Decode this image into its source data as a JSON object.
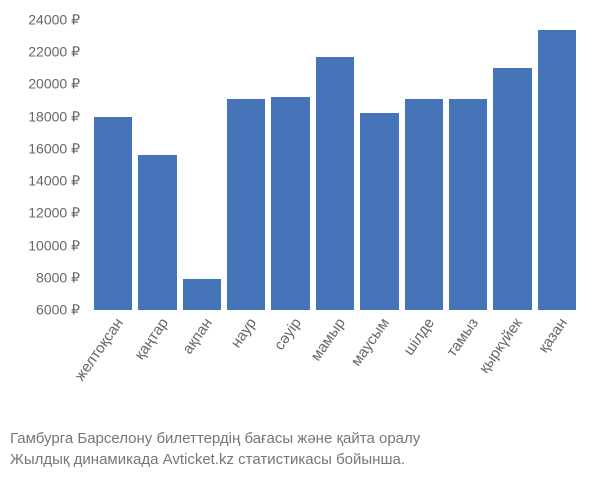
{
  "chart": {
    "type": "bar",
    "ylim": [
      6000,
      24000
    ],
    "ytick_step": 2000,
    "y_suffix": " ₽",
    "bar_color": "#4574b8",
    "background_color": "#ffffff",
    "axis_label_color": "#666666",
    "axis_label_fontsize": 14,
    "categories": [
      "желтоқсан",
      "қаңтар",
      "ақпан",
      "наур",
      "сәуір",
      "мамыр",
      "маусым",
      "шілде",
      "тамыз",
      "қыркүйек",
      "қазан"
    ],
    "values": [
      18000,
      15600,
      7900,
      19100,
      19200,
      21700,
      18200,
      19100,
      19100,
      21000,
      23400
    ]
  },
  "caption": {
    "line1": "Гамбурга Барселону билеттердің бағасы және қайта оралу",
    "line2": "Жылдық динамикада Avticket.kz статистикасы бойынша.",
    "color": "#777777",
    "fontsize": 15
  }
}
